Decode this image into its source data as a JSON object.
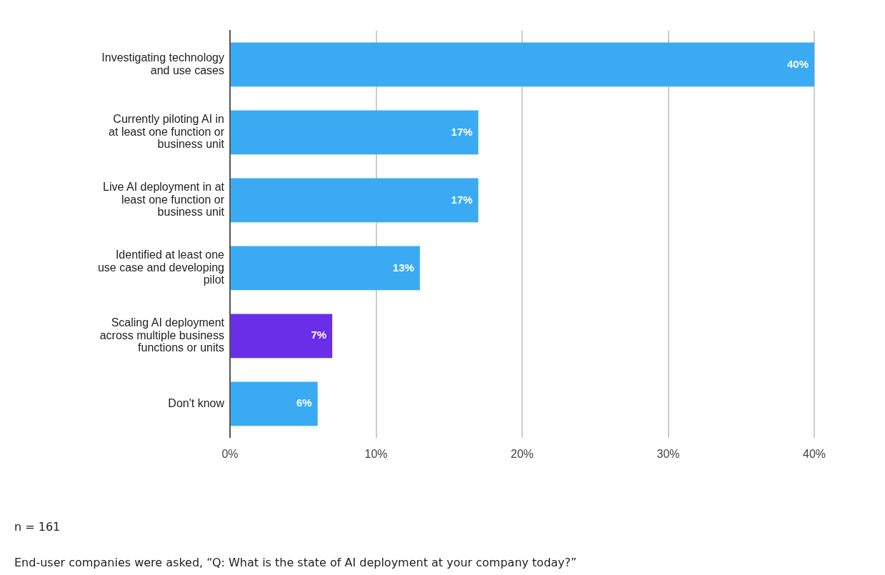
{
  "chart_data": {
    "type": "bar",
    "orientation": "horizontal",
    "categories": [
      "Investigating technology and use cases",
      "Currently piloting AI in at least one function or business unit",
      "Live AI deployment in at least one function or business unit",
      "Identified at least one use case and developing pilot",
      "Scaling AI deployment across multiple business functions or units",
      "Don't know"
    ],
    "values": [
      40,
      17,
      17,
      13,
      7,
      6
    ],
    "value_labels": [
      "40%",
      "17%",
      "17%",
      "13%",
      "7%",
      "6%"
    ],
    "colors": [
      "#3aabf3",
      "#3aabf3",
      "#3aabf3",
      "#3aabf3",
      "#6a2ee8",
      "#3aabf3"
    ],
    "xlim": [
      0,
      40
    ],
    "xticks": [
      {
        "value": 0,
        "label": "0%"
      },
      {
        "value": 10,
        "label": "10%"
      },
      {
        "value": 20,
        "label": "20%"
      },
      {
        "value": 30,
        "label": "30%"
      },
      {
        "value": 40,
        "label": "40%"
      }
    ],
    "grid": "x",
    "legend": false,
    "annotations": [
      "n = 161",
      "End-user companies were asked, “Q: What is the state of AI deployment at your company today?”"
    ]
  }
}
